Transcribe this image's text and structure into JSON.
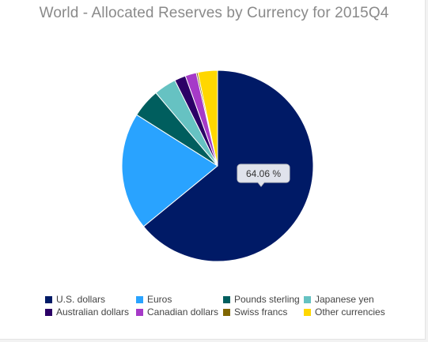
{
  "chart_data": {
    "type": "pie",
    "title": "World - Allocated Reserves by Currency for 2015Q4",
    "start_angle_deg": 0,
    "direction": "clockwise",
    "slices": [
      {
        "name": "U.S. dollars",
        "value": 64.06,
        "color": "#001a66"
      },
      {
        "name": "Euros",
        "value": 19.91,
        "color": "#29a3ff"
      },
      {
        "name": "Pounds sterling",
        "value": 4.88,
        "color": "#005e5e"
      },
      {
        "name": "Japanese yen",
        "value": 3.79,
        "color": "#66c2c2"
      },
      {
        "name": "Australian dollars",
        "value": 1.9,
        "color": "#2b0066"
      },
      {
        "name": "Canadian dollars",
        "value": 1.88,
        "color": "#a63ac8"
      },
      {
        "name": "Swiss francs",
        "value": 0.27,
        "color": "#806600"
      },
      {
        "name": "Other currencies",
        "value": 3.31,
        "color": "#ffd700"
      }
    ],
    "tooltip": {
      "text": "64.06 %",
      "slice": "U.S. dollars"
    },
    "legend_position": "bottom"
  }
}
